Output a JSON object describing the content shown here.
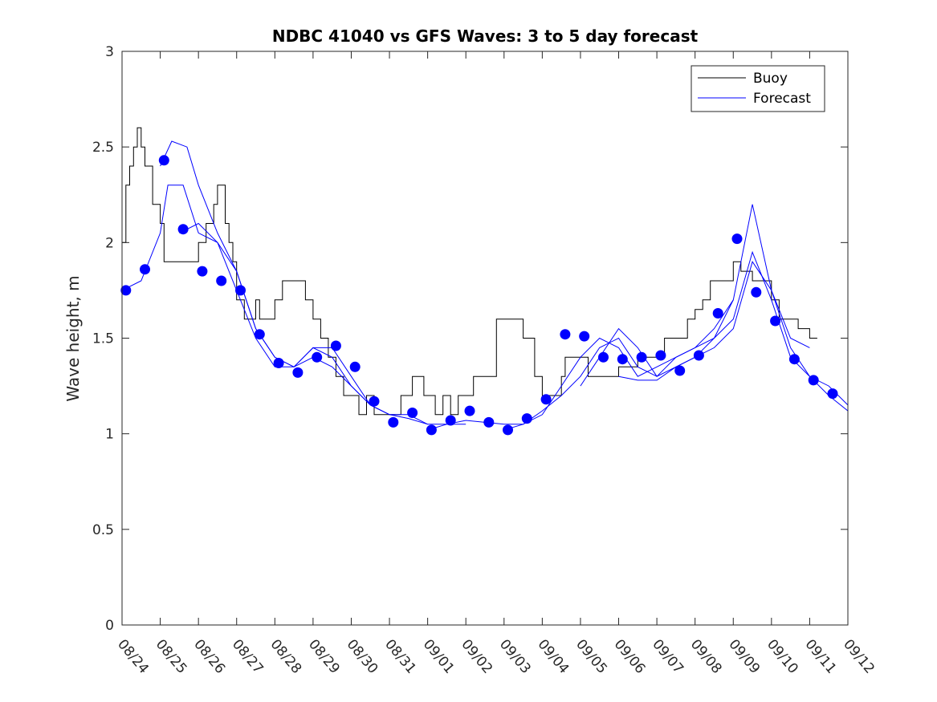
{
  "chart_data": {
    "type": "line",
    "title": "NDBC 41040 vs GFS Waves: 3 to 5 day forecast",
    "xlabel": "",
    "ylabel": "Wave height, m",
    "ylim": [
      0,
      3
    ],
    "xlim_days": [
      0,
      19
    ],
    "yticks": [
      0,
      0.5,
      1,
      1.5,
      2,
      2.5,
      3
    ],
    "ytick_labels": [
      "0",
      "0.5",
      "1",
      "1.5",
      "2",
      "2.5",
      "3"
    ],
    "xtick_labels": [
      "08/24",
      "08/25",
      "08/26",
      "08/27",
      "08/28",
      "08/29",
      "08/30",
      "08/31",
      "09/01",
      "09/02",
      "09/03",
      "09/04",
      "09/05",
      "09/06",
      "09/07",
      "09/08",
      "09/09",
      "09/10",
      "09/11",
      "09/12"
    ],
    "legend": {
      "position": "top-right",
      "entries": [
        {
          "label": "Buoy",
          "color": "#000000"
        },
        {
          "label": "Forecast",
          "color": "#0000ff"
        }
      ]
    },
    "colors": {
      "buoy": "#000000",
      "forecast": "#0000ff",
      "axis": "#262626"
    },
    "buoy": {
      "name": "Buoy",
      "x": [
        0,
        0.1,
        0.2,
        0.3,
        0.4,
        0.5,
        0.6,
        0.7,
        0.8,
        0.9,
        1.0,
        1.1,
        1.2,
        1.3,
        1.5,
        1.7,
        1.9,
        2.0,
        2.2,
        2.4,
        2.5,
        2.7,
        2.8,
        2.9,
        3.0,
        3.2,
        3.5,
        3.6,
        3.8,
        4.0,
        4.2,
        4.5,
        4.8,
        5.0,
        5.2,
        5.4,
        5.6,
        5.8,
        6.0,
        6.2,
        6.4,
        6.6,
        6.8,
        7.0,
        7.3,
        7.6,
        7.9,
        8.0,
        8.2,
        8.4,
        8.5,
        8.6,
        8.8,
        9.0,
        9.2,
        9.5,
        9.8,
        10.0,
        10.2,
        10.5,
        10.8,
        11.0,
        11.2,
        11.5,
        11.6,
        11.8,
        12.0,
        12.2,
        12.5,
        12.7,
        12.9,
        13.0,
        13.2,
        13.5,
        13.8,
        14.0,
        14.2,
        14.5,
        14.8,
        15.0,
        15.2,
        15.4,
        15.5,
        15.7,
        16.0,
        16.2,
        16.5,
        16.8,
        17.0,
        17.2,
        17.5,
        17.7,
        18.0,
        18.2
      ],
      "values": [
        2.0,
        2.3,
        2.4,
        2.5,
        2.6,
        2.5,
        2.4,
        2.4,
        2.2,
        2.2,
        2.1,
        1.9,
        1.9,
        1.9,
        1.9,
        1.9,
        1.9,
        2.0,
        2.1,
        2.2,
        2.3,
        2.1,
        2.0,
        1.9,
        1.7,
        1.6,
        1.7,
        1.6,
        1.6,
        1.7,
        1.8,
        1.8,
        1.7,
        1.6,
        1.5,
        1.4,
        1.3,
        1.2,
        1.2,
        1.1,
        1.2,
        1.1,
        1.1,
        1.1,
        1.2,
        1.3,
        1.2,
        1.2,
        1.1,
        1.2,
        1.2,
        1.1,
        1.2,
        1.2,
        1.3,
        1.3,
        1.6,
        1.6,
        1.6,
        1.5,
        1.3,
        1.2,
        1.2,
        1.3,
        1.4,
        1.4,
        1.4,
        1.3,
        1.3,
        1.3,
        1.3,
        1.35,
        1.35,
        1.4,
        1.4,
        1.4,
        1.5,
        1.5,
        1.6,
        1.65,
        1.7,
        1.8,
        1.8,
        1.8,
        1.9,
        1.85,
        1.8,
        1.8,
        1.7,
        1.6,
        1.6,
        1.55,
        1.5,
        1.5
      ]
    },
    "forecast_series": [
      {
        "name": "Forecast",
        "x": [
          0.0,
          0.5,
          1.0,
          1.2,
          1.6,
          2.0,
          2.5,
          3.0,
          3.5,
          4.0,
          4.5,
          5.0,
          5.5,
          6.0,
          6.5,
          7.0
        ],
        "values": [
          1.75,
          1.8,
          2.05,
          2.3,
          2.3,
          2.05,
          2.0,
          1.85,
          1.55,
          1.4,
          1.35,
          1.4,
          1.35,
          1.25,
          1.15,
          1.1
        ]
      },
      {
        "name": "Forecast",
        "x": [
          1.0,
          1.3,
          1.7,
          2.0,
          2.5,
          3.0,
          3.5,
          4.0,
          4.5,
          5.0,
          5.5,
          6.0,
          6.5,
          7.0,
          7.5,
          8.0
        ],
        "values": [
          2.4,
          2.53,
          2.5,
          2.3,
          2.05,
          1.85,
          1.55,
          1.4,
          1.35,
          1.45,
          1.4,
          1.25,
          1.15,
          1.1,
          1.1,
          1.05
        ]
      },
      {
        "name": "Forecast",
        "x": [
          1.5,
          2.0,
          2.5,
          3.0,
          3.5,
          4.0,
          4.5,
          5.0,
          5.5,
          6.0,
          6.5,
          7.0,
          7.5,
          8.0,
          8.5,
          9.0
        ],
        "values": [
          2.05,
          2.1,
          2.0,
          1.75,
          1.5,
          1.35,
          1.35,
          1.45,
          1.45,
          1.3,
          1.15,
          1.1,
          1.08,
          1.05,
          1.05,
          1.05
        ]
      },
      {
        "name": "Forecast",
        "x": [
          8.0,
          8.5,
          9.0,
          9.5,
          10.0,
          10.5,
          11.0,
          11.5,
          12.0,
          12.5,
          13.0,
          13.5,
          14.0,
          14.5,
          15.0,
          15.5,
          16.0
        ],
        "values": [
          1.02,
          1.05,
          1.07,
          1.06,
          1.05,
          1.05,
          1.1,
          1.25,
          1.4,
          1.5,
          1.45,
          1.3,
          1.35,
          1.4,
          1.45,
          1.55,
          1.7
        ]
      },
      {
        "name": "Forecast",
        "x": [
          10.0,
          10.5,
          11.0,
          11.5,
          12.0,
          12.5,
          13.0,
          13.5,
          14.0,
          14.5,
          15.0,
          15.5,
          16.0,
          16.5,
          17.0,
          17.5,
          18.0
        ],
        "values": [
          1.02,
          1.05,
          1.12,
          1.2,
          1.3,
          1.45,
          1.5,
          1.35,
          1.3,
          1.4,
          1.45,
          1.5,
          1.7,
          2.2,
          1.75,
          1.5,
          1.45
        ]
      },
      {
        "name": "Forecast",
        "x": [
          12.0,
          12.5,
          13.0,
          13.5,
          14.0,
          14.5,
          15.0,
          15.5,
          16.0,
          16.5,
          17.0,
          17.5,
          18.0,
          18.5,
          19.0
        ],
        "values": [
          1.25,
          1.4,
          1.55,
          1.45,
          1.3,
          1.35,
          1.4,
          1.5,
          1.6,
          1.95,
          1.7,
          1.4,
          1.3,
          1.25,
          1.15
        ]
      },
      {
        "name": "Forecast",
        "x": [
          13.0,
          13.5,
          14.0,
          14.5,
          15.0,
          15.5,
          16.0,
          16.5,
          17.0,
          17.5,
          18.0,
          18.5,
          19.0
        ],
        "values": [
          1.3,
          1.28,
          1.28,
          1.35,
          1.4,
          1.45,
          1.55,
          1.9,
          1.75,
          1.45,
          1.3,
          1.2,
          1.12
        ]
      }
    ],
    "forecast_points": {
      "name": "Forecast",
      "x": [
        0.1,
        0.6,
        1.1,
        1.6,
        2.1,
        2.6,
        3.1,
        3.6,
        4.1,
        4.6,
        5.1,
        5.6,
        6.1,
        6.6,
        7.1,
        7.6,
        8.1,
        8.6,
        9.1,
        9.6,
        10.1,
        10.6,
        11.1,
        11.6,
        12.1,
        12.6,
        13.1,
        13.6,
        14.1,
        14.6,
        15.1,
        15.6,
        16.1,
        16.6,
        17.1,
        17.6,
        18.1,
        18.6
      ],
      "values": [
        1.75,
        1.86,
        2.43,
        2.07,
        1.85,
        1.8,
        1.75,
        1.52,
        1.37,
        1.32,
        1.4,
        1.46,
        1.35,
        1.17,
        1.06,
        1.11,
        1.02,
        1.07,
        1.12,
        1.06,
        1.02,
        1.08,
        1.18,
        1.52,
        1.51,
        1.4,
        1.39,
        1.4,
        1.41,
        1.33,
        1.41,
        1.63,
        2.02,
        1.74,
        1.59,
        1.39,
        1.28,
        1.21
      ]
    }
  }
}
